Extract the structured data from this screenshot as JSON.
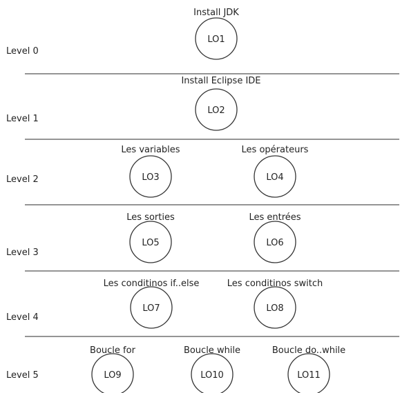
{
  "levels": [
    {
      "label": "Level 0",
      "nodes": [
        {
          "id": "LO1",
          "title": "Install JDK"
        }
      ]
    },
    {
      "label": "Level 1",
      "nodes": [
        {
          "id": "LO2",
          "title": "Install Eclipse IDE"
        }
      ]
    },
    {
      "label": "Level 2",
      "nodes": [
        {
          "id": "LO3",
          "title": "Les variables"
        },
        {
          "id": "LO4",
          "title": "Les opérateurs"
        }
      ]
    },
    {
      "label": "Level 3",
      "nodes": [
        {
          "id": "LO5",
          "title": "Les sorties"
        },
        {
          "id": "LO6",
          "title": "Les entrées"
        }
      ]
    },
    {
      "label": "Level 4",
      "nodes": [
        {
          "id": "LO7",
          "title": "Les conditinos if..else"
        },
        {
          "id": "LO8",
          "title": "Les conditinos switch"
        }
      ]
    },
    {
      "label": "Level 5",
      "nodes": [
        {
          "id": "LO9",
          "title": "Boucle for"
        },
        {
          "id": "LO10",
          "title": "Boucle while"
        },
        {
          "id": "LO11",
          "title": "Boucle do..while"
        }
      ]
    }
  ]
}
